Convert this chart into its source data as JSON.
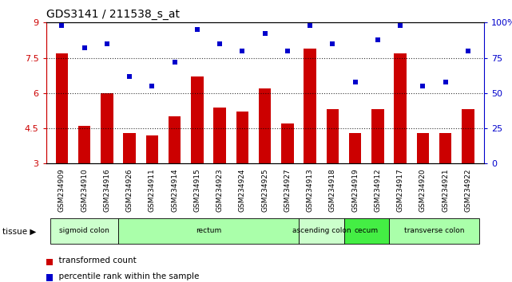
{
  "title": "GDS3141 / 211538_s_at",
  "samples": [
    "GSM234909",
    "GSM234910",
    "GSM234916",
    "GSM234926",
    "GSM234911",
    "GSM234914",
    "GSM234915",
    "GSM234923",
    "GSM234924",
    "GSM234925",
    "GSM234927",
    "GSM234913",
    "GSM234918",
    "GSM234919",
    "GSM234912",
    "GSM234917",
    "GSM234920",
    "GSM234921",
    "GSM234922"
  ],
  "red_values": [
    7.7,
    4.6,
    6.0,
    4.3,
    4.2,
    5.0,
    6.7,
    5.4,
    5.2,
    6.2,
    4.7,
    7.9,
    5.3,
    4.3,
    5.3,
    7.7,
    4.3,
    4.3,
    5.3
  ],
  "blue_pct": [
    98,
    82,
    85,
    62,
    55,
    72,
    95,
    85,
    80,
    92,
    80,
    98,
    85,
    58,
    88,
    98,
    55,
    58,
    80
  ],
  "ylim_left": [
    3,
    9
  ],
  "yticks_left": [
    3,
    4.5,
    6,
    7.5,
    9
  ],
  "ytick_labels_left": [
    "3",
    "4.5",
    "6",
    "7.5",
    "9"
  ],
  "ylim_right": [
    0,
    100
  ],
  "yticks_right": [
    0,
    25,
    50,
    75,
    100
  ],
  "ytick_labels_right": [
    "0",
    "25",
    "50",
    "75",
    "100%"
  ],
  "bar_color": "#cc0000",
  "dot_color": "#0000cc",
  "tissue_groups": [
    {
      "label": "sigmoid colon",
      "start": 0,
      "end": 3,
      "color": "#ccffcc"
    },
    {
      "label": "rectum",
      "start": 3,
      "end": 11,
      "color": "#aaffaa"
    },
    {
      "label": "ascending colon",
      "start": 11,
      "end": 13,
      "color": "#ccffcc"
    },
    {
      "label": "cecum",
      "start": 13,
      "end": 15,
      "color": "#44ee44"
    },
    {
      "label": "transverse colon",
      "start": 15,
      "end": 19,
      "color": "#aaffaa"
    }
  ],
  "left_axis_color": "#cc0000",
  "right_axis_color": "#0000cc",
  "dotted_lines": [
    4.5,
    6.0,
    7.5
  ]
}
